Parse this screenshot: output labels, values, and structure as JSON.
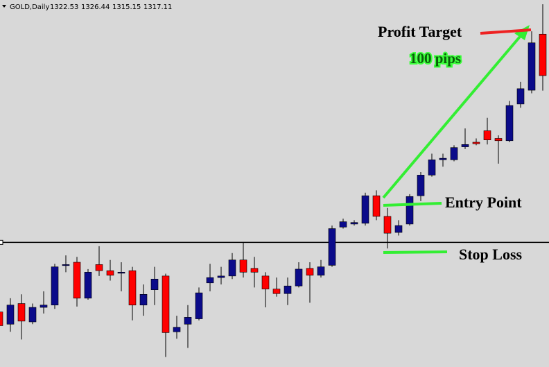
{
  "chart_data": {
    "type": "candlestick",
    "symbol": "GOLD,Daily",
    "open": [
      1286.2,
      1284.6,
      1287.3,
      1284.9,
      1286.8,
      1287.1,
      1292.3,
      1292.7,
      1288.0,
      1292.4,
      1291.6,
      1291.3,
      1291.6,
      1287.1,
      1289.1,
      1290.9,
      1283.6,
      1284.6,
      1285.3,
      1290.0,
      1290.7,
      1290.9,
      1293.0,
      1291.9,
      1290.9,
      1289.2,
      1288.6,
      1289.6,
      1291.9,
      1291.0,
      1292.3,
      1297.3,
      1297.7,
      1297.8,
      1301.4,
      1298.7,
      1296.6,
      1297.7,
      1301.4,
      1304.1,
      1306.1,
      1306.1,
      1307.8,
      1308.4,
      1309.9,
      1308.9,
      1308.6,
      1313.4,
      1315.2,
      1322.53
    ],
    "high": [
      1286.6,
      1288.0,
      1288.5,
      1287.3,
      1288.9,
      1292.5,
      1293.6,
      1293.4,
      1291.8,
      1294.8,
      1293.0,
      1292.7,
      1292.1,
      1289.8,
      1292.1,
      1291.2,
      1285.7,
      1287.1,
      1289.4,
      1292.5,
      1292.1,
      1293.9,
      1295.3,
      1293.4,
      1291.4,
      1290.7,
      1290.7,
      1292.7,
      1292.7,
      1293.0,
      1297.5,
      1298.4,
      1298.2,
      1301.8,
      1302.1,
      1299.8,
      1298.2,
      1301.6,
      1304.5,
      1306.9,
      1306.9,
      1308.0,
      1310.2,
      1308.9,
      1311.6,
      1309.3,
      1313.8,
      1316.3,
      1322.9,
      1326.44
    ],
    "low": [
      1284.2,
      1283.6,
      1282.6,
      1284.6,
      1286.0,
      1286.6,
      1291.4,
      1286.9,
      1287.8,
      1290.9,
      1290.3,
      1288.9,
      1285.1,
      1285.7,
      1287.1,
      1280.3,
      1282.7,
      1281.5,
      1285.1,
      1288.9,
      1289.8,
      1290.5,
      1290.7,
      1289.4,
      1286.8,
      1288.2,
      1287.1,
      1289.4,
      1287.4,
      1290.7,
      1292.1,
      1297.1,
      1297.5,
      1297.5,
      1298.2,
      1294.5,
      1296.2,
      1297.5,
      1300.7,
      1303.9,
      1305.2,
      1305.9,
      1307.5,
      1308.0,
      1308.1,
      1305.6,
      1308.4,
      1312.9,
      1314.8,
      1315.15
    ],
    "close": [
      1284.4,
      1287.1,
      1285.0,
      1286.8,
      1287.1,
      1292.1,
      1292.4,
      1288.0,
      1291.4,
      1291.6,
      1291.0,
      1291.4,
      1287.1,
      1288.5,
      1290.5,
      1283.5,
      1284.2,
      1285.5,
      1288.7,
      1290.7,
      1290.9,
      1293.0,
      1291.4,
      1291.4,
      1289.2,
      1288.6,
      1289.6,
      1291.8,
      1291.0,
      1292.1,
      1297.1,
      1298.0,
      1297.9,
      1301.4,
      1298.7,
      1296.5,
      1297.5,
      1301.3,
      1304.1,
      1306.1,
      1306.3,
      1307.7,
      1308.1,
      1308.2,
      1308.7,
      1308.6,
      1313.2,
      1315.4,
      1321.4,
      1317.11
    ],
    "ylim": [
      1279,
      1327
    ],
    "up_color": "#0b0b8a",
    "down_color": "#ff0000",
    "price_line": 1295.3,
    "annotations": {
      "profit_target": "Profit Target",
      "pips": "100 pips",
      "entry": "Entry Point",
      "stop": "Stop Loss"
    }
  }
}
